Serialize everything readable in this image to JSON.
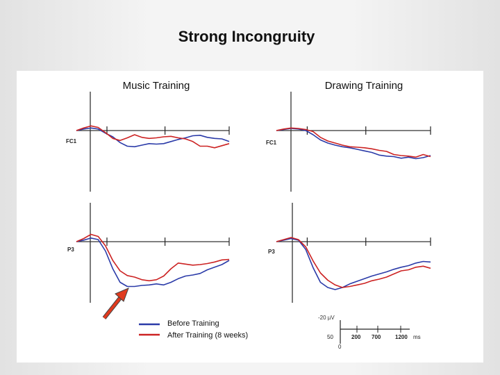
{
  "slide": {
    "title": "Strong Incongruity"
  },
  "chart_data": {
    "type": "line",
    "panels": [
      {
        "column_title": "Music Training",
        "electrode": "FC1",
        "series": [
          {
            "name": "Before Training",
            "color": "#2a3aa8",
            "y": [
              0,
              0.3,
              0.5,
              0.3,
              -0.5,
              -1.2,
              -2.3,
              -3,
              -3.1,
              -2.8,
              -2.5,
              -2.6,
              -2.5,
              -2.1,
              -1.7,
              -1.4,
              -1.0,
              -0.9,
              -1.3,
              -1.5,
              -1.6,
              -2.1
            ]
          },
          {
            "name": "After Training (8 weeks)",
            "color": "#cc2222",
            "y": [
              0,
              0.5,
              0.9,
              0.6,
              -0.4,
              -1.5,
              -1.9,
              -1.4,
              -0.8,
              -1.3,
              -1.5,
              -1.4,
              -1.2,
              -1.1,
              -1.4,
              -1.6,
              -2.1,
              -3.0,
              -3.0,
              -3.3,
              -2.9,
              -2.5
            ]
          }
        ]
      },
      {
        "column_title": "Drawing Training",
        "electrode": "FC1",
        "series": [
          {
            "name": "Before Training",
            "color": "#2a3aa8",
            "y": [
              0,
              0.2,
              0.4,
              0.3,
              0,
              -0.8,
              -1.8,
              -2.4,
              -2.8,
              -3.1,
              -3.3,
              -3.6,
              -3.9,
              -4.2,
              -4.7,
              -4.9,
              -5.0,
              -5.3,
              -5.1,
              -5.4,
              -5.2,
              -4.8
            ]
          },
          {
            "name": "After Training (8 weeks)",
            "color": "#cc2222",
            "y": [
              0,
              0.3,
              0.5,
              0.4,
              0.2,
              -0.2,
              -1.3,
              -2.0,
              -2.4,
              -2.8,
              -3.1,
              -3.2,
              -3.3,
              -3.5,
              -3.8,
              -4.0,
              -4.6,
              -4.8,
              -4.9,
              -5.1,
              -4.6,
              -5.0
            ]
          }
        ]
      },
      {
        "column_title": "Music Training",
        "electrode": "P3",
        "series": [
          {
            "name": "Before Training",
            "color": "#2a3aa8",
            "y": [
              0,
              0.3,
              0.7,
              0.4,
              -1.8,
              -5.2,
              -7.8,
              -8.6,
              -8.6,
              -8.4,
              -8.3,
              -8.1,
              -8.3,
              -7.8,
              -7.1,
              -6.6,
              -6.4,
              -6.1,
              -5.4,
              -4.9,
              -4.4,
              -3.6
            ]
          },
          {
            "name": "After Training (8 weeks)",
            "color": "#cc2222",
            "y": [
              0,
              0.6,
              1.4,
              1.0,
              -0.8,
              -3.6,
              -5.6,
              -6.5,
              -6.8,
              -7.3,
              -7.5,
              -7.3,
              -6.6,
              -5.2,
              -4.1,
              -4.3,
              -4.5,
              -4.4,
              -4.2,
              -3.9,
              -3.5,
              -3.4
            ]
          }
        ]
      },
      {
        "column_title": "Drawing Training",
        "electrode": "P3",
        "series": [
          {
            "name": "Before Training",
            "color": "#2a3aa8",
            "y": [
              0,
              0.3,
              0.6,
              0.3,
              -1.5,
              -5.0,
              -7.8,
              -8.8,
              -9.2,
              -8.8,
              -8.1,
              -7.6,
              -7.1,
              -6.6,
              -6.2,
              -5.8,
              -5.3,
              -4.9,
              -4.6,
              -4.1,
              -3.8,
              -3.9
            ]
          },
          {
            "name": "After Training (8 weeks)",
            "color": "#cc2222",
            "y": [
              0,
              0.4,
              0.8,
              0.4,
              -1.0,
              -3.7,
              -6.0,
              -7.4,
              -8.3,
              -8.8,
              -8.6,
              -8.3,
              -8.0,
              -7.5,
              -7.2,
              -6.8,
              -6.2,
              -5.6,
              -5.4,
              -4.9,
              -4.7,
              -5.1
            ]
          }
        ]
      }
    ],
    "legend": {
      "entries": [
        {
          "label": "Before Training",
          "color": "#2a3aa8"
        },
        {
          "label": "After Training (8 weeks)",
          "color": "#cc2222"
        }
      ],
      "placement": "bottom-left"
    },
    "scale_bar": {
      "amplitude_label": "-20 µV",
      "time_ticks": [
        "50",
        "200",
        "700",
        "1200"
      ],
      "time_unit": "ms",
      "zero_label": "0"
    },
    "annotation": {
      "arrow_color": "#e03a1e"
    }
  }
}
